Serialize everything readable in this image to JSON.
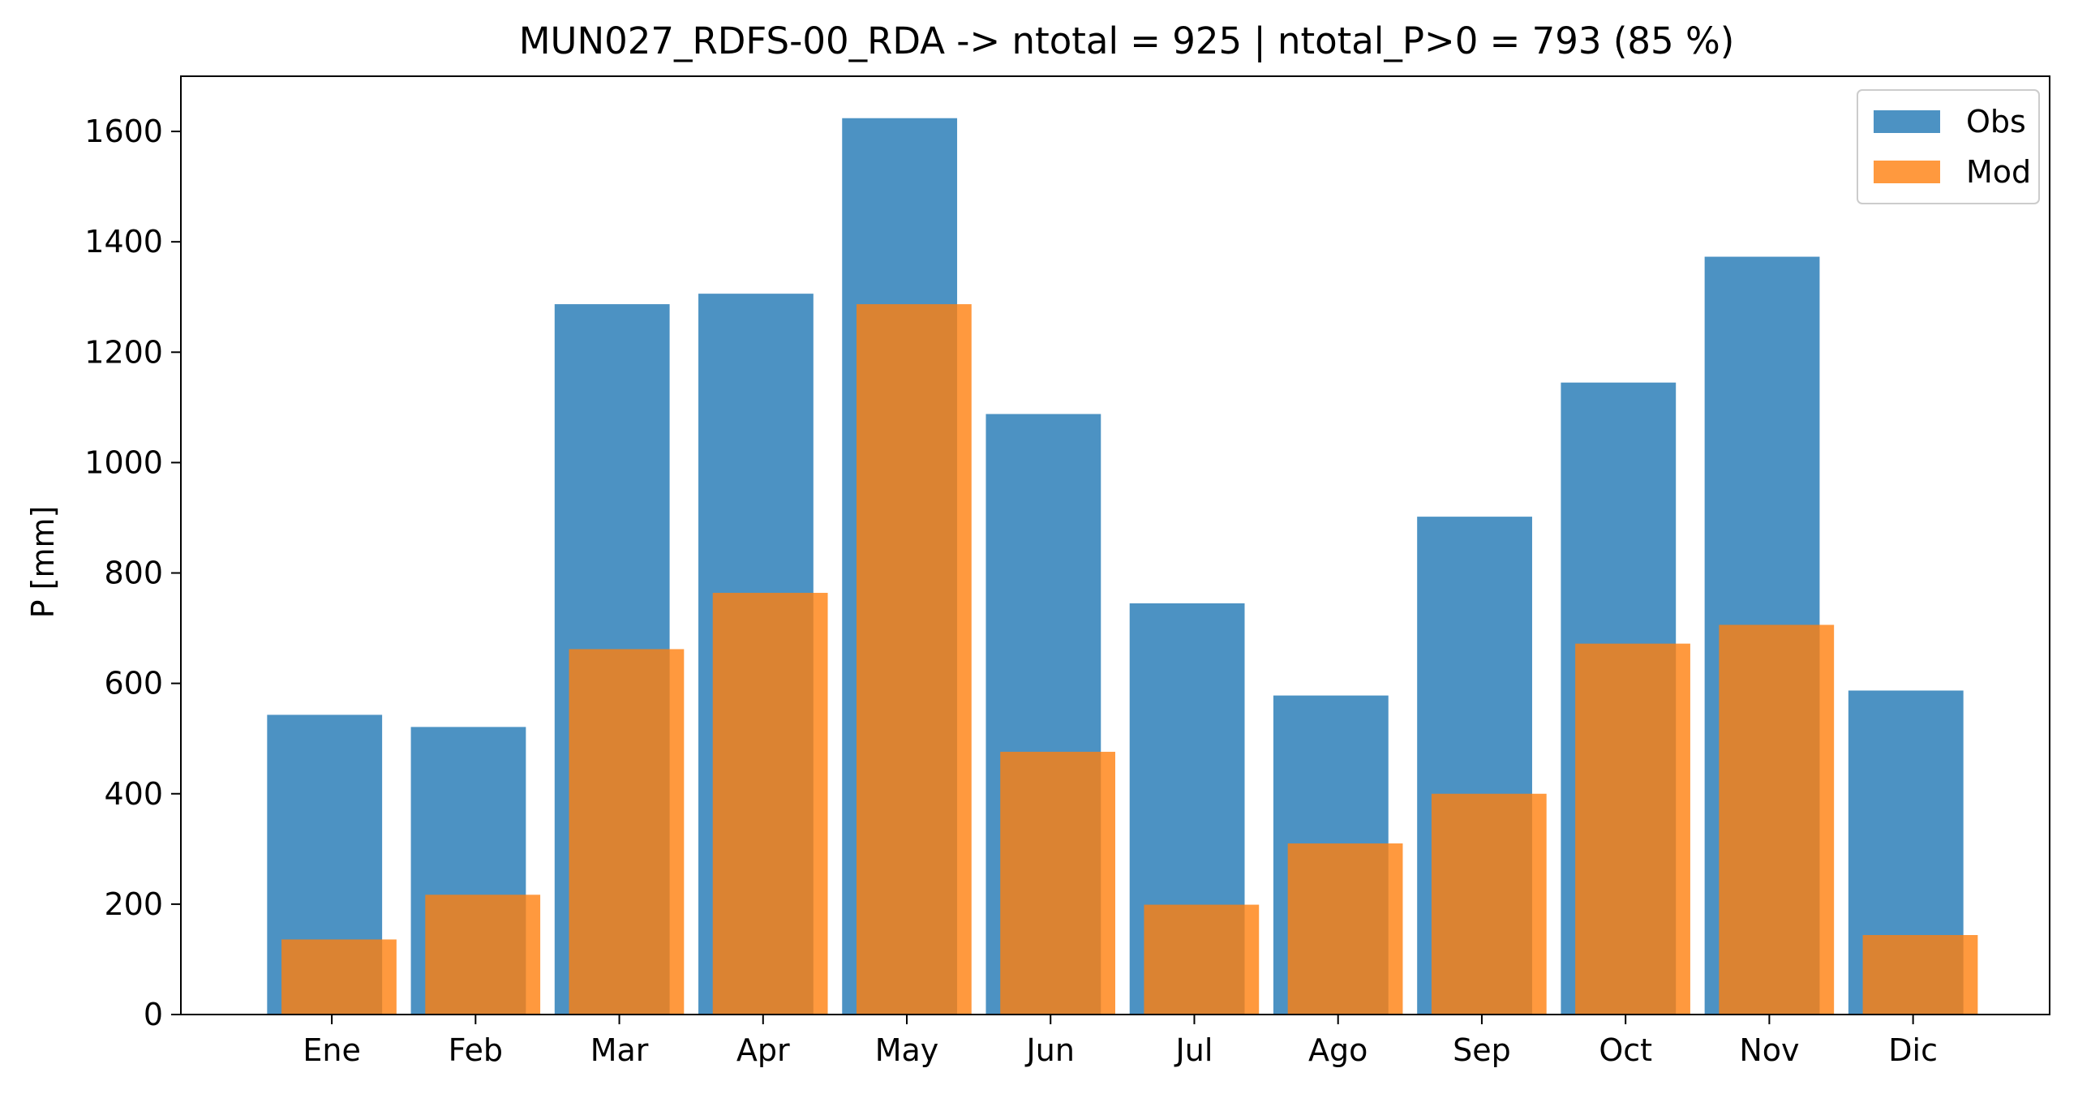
{
  "chart_data": {
    "type": "bar",
    "title": "MUN027_RDFS-00_RDA -> ntotal = 925 | ntotal_P>0 = 793 (85 %)",
    "xlabel": "",
    "ylabel": "P [mm]",
    "categories": [
      "Ene",
      "Feb",
      "Mar",
      "Apr",
      "May",
      "Jun",
      "Jul",
      "Ago",
      "Sep",
      "Oct",
      "Nov",
      "Dic"
    ],
    "series": [
      {
        "name": "Obs",
        "color": "#1f77b4",
        "values": [
          543,
          521,
          1287,
          1306,
          1624,
          1088,
          745,
          578,
          902,
          1145,
          1373,
          587
        ]
      },
      {
        "name": "Mod",
        "color": "#ff7f0e",
        "values": [
          136,
          217,
          662,
          764,
          1287,
          476,
          199,
          310,
          400,
          672,
          706,
          144
        ]
      }
    ],
    "ylim": [
      0,
      1700
    ],
    "yticks": [
      0,
      200,
      400,
      600,
      800,
      1000,
      1200,
      1400,
      1600
    ],
    "grid": false,
    "legend_position": "top-right"
  }
}
